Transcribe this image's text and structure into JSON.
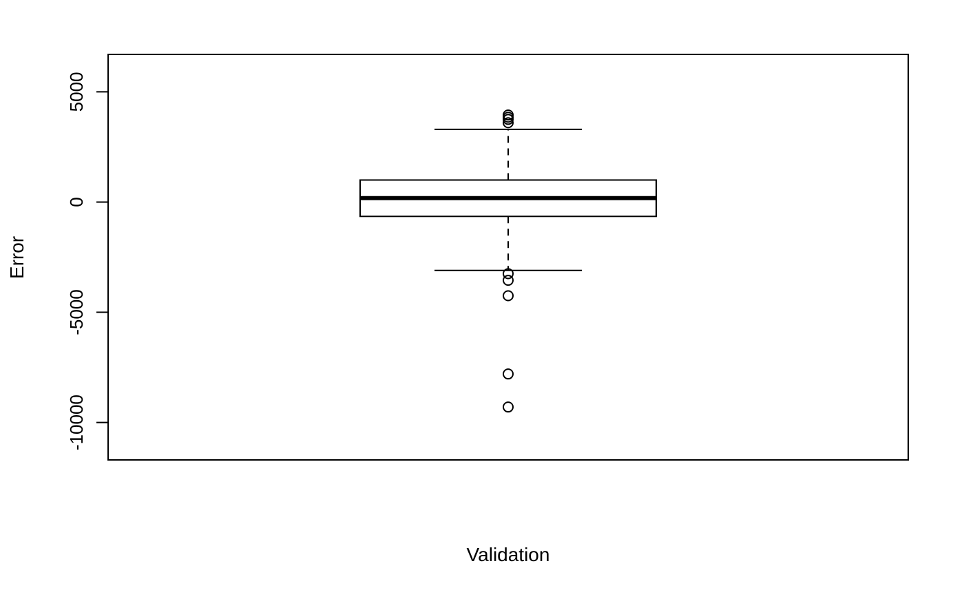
{
  "chart_data": {
    "type": "boxplot",
    "title": "",
    "xlabel": "Validation",
    "ylabel": "Error",
    "ylim": [
      -11700,
      6700
    ],
    "yticks": [
      -10000,
      -5000,
      0,
      5000
    ],
    "ytick_labels": [
      "-10000",
      "-5000",
      "0",
      "5000"
    ],
    "grid": false,
    "legend": "none",
    "box": {
      "q1": -650,
      "median": 180,
      "q3": 1000,
      "whisker_low": -3100,
      "whisker_high": 3300
    },
    "outliers": [
      3950,
      3850,
      3750,
      3600,
      -3250,
      -3550,
      -4250,
      -7800,
      -9300
    ],
    "colors": {
      "stroke": "#000000",
      "background": "#ffffff"
    }
  }
}
